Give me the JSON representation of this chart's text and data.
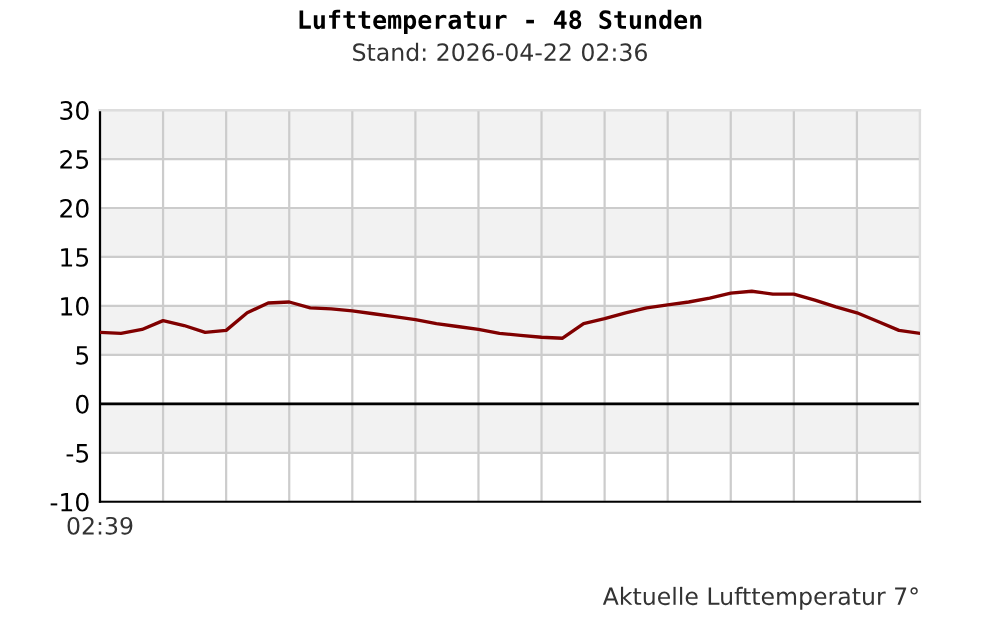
{
  "chart_data": {
    "type": "line",
    "title": "Lufttemperatur - 48 Stunden",
    "subtitle": "Stand: 2026-04-22 02:36",
    "annotations": [
      "02:39",
      "Aktuelle Lufttemperatur 7°"
    ],
    "categories": [
      null,
      null,
      null,
      null,
      null,
      null,
      null,
      null,
      null,
      null,
      null,
      null,
      null,
      null,
      null,
      null,
      null,
      null,
      null,
      null,
      null,
      null,
      null,
      null,
      null,
      null,
      null,
      null,
      null,
      null,
      null,
      null,
      null,
      null,
      null,
      null,
      null,
      null,
      null,
      null
    ],
    "series": [
      {
        "color": "#800000",
        "values": [
          7.3,
          7.2,
          7.6,
          8.5,
          8.0,
          7.3,
          7.5,
          9.3,
          10.3,
          10.4,
          9.8,
          9.7,
          9.5,
          9.2,
          8.9,
          8.6,
          8.2,
          7.9,
          7.6,
          7.2,
          7.0,
          6.8,
          6.7,
          8.2,
          8.7,
          9.3,
          9.8,
          10.1,
          10.4,
          10.8,
          11.3,
          11.5,
          11.2,
          11.2,
          10.6,
          9.9,
          9.3,
          8.4,
          7.5,
          7.2
        ]
      }
    ],
    "ylim": [
      -10,
      30
    ],
    "yticks": [
      -10,
      -5,
      0,
      5,
      10,
      15,
      20,
      25,
      30
    ],
    "tick_labels": "y",
    "grid": true,
    "marker": "none",
    "line_style": "solid",
    "legend": false,
    "ref_lines": [
      {
        "axis": "y",
        "value": 0,
        "color": "#000000"
      }
    ],
    "bands": [
      {
        "axis": "y",
        "from": 25,
        "to": 30,
        "color": "#f2f2f2"
      },
      {
        "axis": "y",
        "from": 15,
        "to": 20,
        "color": "#f2f2f2"
      },
      {
        "axis": "y",
        "from": 5,
        "to": 10,
        "color": "#f2f2f2"
      },
      {
        "axis": "y",
        "from": -5,
        "to": 0,
        "color": "#f2f2f2"
      }
    ]
  }
}
